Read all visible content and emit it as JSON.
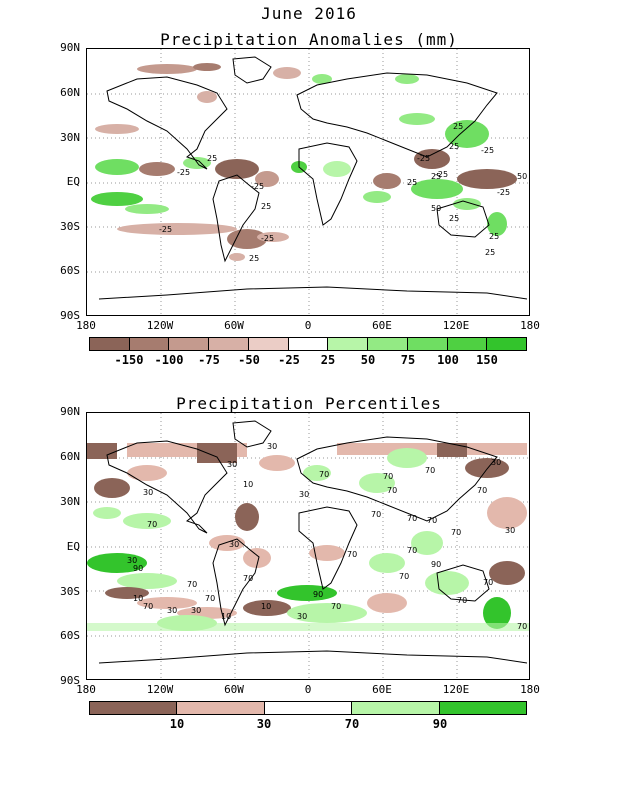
{
  "header": {
    "title": "June 2016"
  },
  "top_panel": {
    "title": "Precipitation Anomalies (mm)",
    "lat_labels": [
      "90N",
      "60N",
      "30N",
      "EQ",
      "30S",
      "60S",
      "90S"
    ],
    "lon_labels": [
      "180",
      "120W",
      "60W",
      "0",
      "60E",
      "120E",
      "180"
    ],
    "colorbar": {
      "colors": [
        "#8b6458",
        "#a67c6f",
        "#c49a8e",
        "#d7b0a6",
        "#ebcdc6",
        "#ffffff",
        "#b7f5a8",
        "#93ea84",
        "#6fde62",
        "#4fd042",
        "#33c42c"
      ],
      "labels": [
        "-150",
        "-100",
        "-75",
        "-50",
        "-25",
        "25",
        "50",
        "75",
        "100",
        "150"
      ]
    },
    "contour_labels": [
      "25",
      "-25",
      "-25",
      "-25",
      "25",
      "-25",
      "25",
      "25",
      "50",
      "25",
      "25",
      "-25",
      "25",
      "-25",
      "25",
      "50",
      "25",
      "-25",
      "-25",
      "25"
    ]
  },
  "bottom_panel": {
    "title": "Precipitation Percentiles",
    "lat_labels": [
      "90N",
      "60N",
      "30N",
      "EQ",
      "30S",
      "60S",
      "90S"
    ],
    "lon_labels": [
      "180",
      "120W",
      "60W",
      "0",
      "60E",
      "120E",
      "180"
    ],
    "colorbar": {
      "colors": [
        "#8b6458",
        "#e3b8ac",
        "#ffffff",
        "#b7f5a8",
        "#33c42c"
      ],
      "labels": [
        "10",
        "30",
        "70",
        "90"
      ]
    },
    "contour_labels": [
      "30",
      "30",
      "30",
      "10",
      "70",
      "30",
      "70",
      "70",
      "30",
      "70",
      "30",
      "70",
      "90",
      "70",
      "10",
      "70",
      "30",
      "10",
      "70",
      "90",
      "10",
      "30",
      "70",
      "70",
      "70",
      "70",
      "70",
      "30",
      "70",
      "70",
      "30",
      "70",
      "30",
      "70",
      "70",
      "90",
      "70",
      "70",
      "70"
    ]
  }
}
